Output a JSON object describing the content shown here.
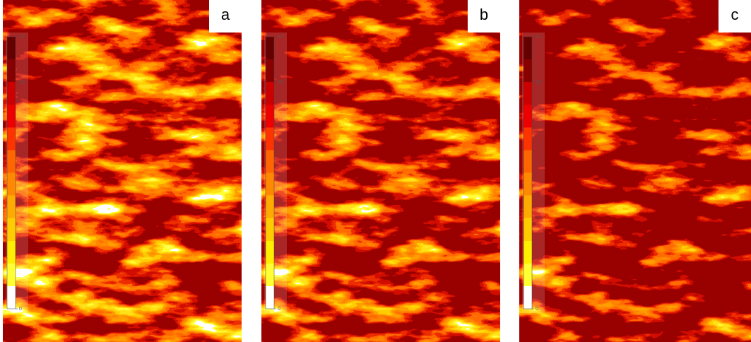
{
  "panels": [
    {
      "label": "a",
      "colorbar": {
        "lim": [
          0,
          12
        ],
        "ticks": [
          12,
          10,
          0
        ]
      }
    },
    {
      "label": "b",
      "colorbar": {
        "lim": [
          0,
          12
        ],
        "ticks": [
          12,
          10,
          0
        ]
      }
    },
    {
      "label": "c",
      "colorbar": {
        "lim": [
          0,
          12
        ],
        "ticks": [
          12,
          10,
          0
        ]
      }
    }
  ]
}
